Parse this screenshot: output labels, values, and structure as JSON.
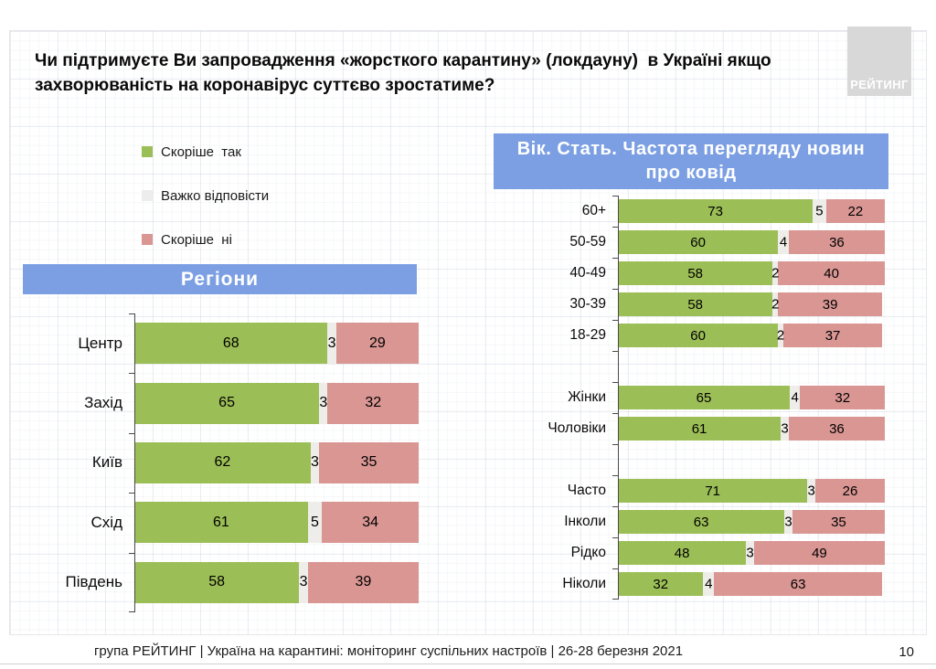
{
  "title": {
    "line1": "Чи підтримуєте Ви запровадження «жорсткого карантину» (локдауну)  в Україні якщо",
    "line2": "захворюваність на коронавірус суттєво зростатиме?"
  },
  "logo": {
    "text": "РЕЙТИНГ"
  },
  "colors": {
    "yes_green": "#9cbe56",
    "neutral_gray": "#eeede9",
    "legend_neutral_gray": "#ededed",
    "no_pink": "#d99693",
    "banner_blue": "#7c9fe3",
    "logo_gray": "#d8d8d8",
    "axis": "#4a4a4a"
  },
  "legend": {
    "items": [
      {
        "label": "Скоріше  так",
        "color": "#9cbe56"
      },
      {
        "label": "Важко відповісти",
        "color": "#ededed"
      },
      {
        "label": "Скоріше  ні",
        "color": "#d99693"
      }
    ]
  },
  "chart_data": [
    {
      "type": "bar",
      "stacked": true,
      "orientation": "horizontal",
      "title": "Регіони",
      "series_names": [
        "Скоріше так",
        "Важко відповісти",
        "Скоріше ні"
      ],
      "series_colors": [
        "#9cbe56",
        "#eeede9",
        "#d99693"
      ],
      "xlim": [
        0,
        100
      ],
      "value_labels": true,
      "groups": [
        {
          "categories": [
            "Центр",
            "Захід",
            "Київ",
            "Схід",
            "Південь"
          ],
          "values": [
            [
              68,
              3,
              29
            ],
            [
              65,
              3,
              32
            ],
            [
              62,
              3,
              35
            ],
            [
              61,
              5,
              34
            ],
            [
              58,
              3,
              39
            ]
          ]
        }
      ]
    },
    {
      "type": "bar",
      "stacked": true,
      "orientation": "horizontal",
      "title": "Вік. Стать. Частота перегляду новин про ковід",
      "series_names": [
        "Скоріше так",
        "Важко відповісти",
        "Скоріше ні"
      ],
      "series_colors": [
        "#9cbe56",
        "#eeede9",
        "#d99693"
      ],
      "xlim": [
        0,
        100
      ],
      "value_labels": true,
      "groups": [
        {
          "categories": [
            "60+",
            "50-59",
            "40-49",
            "30-39",
            "18-29"
          ],
          "values": [
            [
              73,
              5,
              22
            ],
            [
              60,
              4,
              36
            ],
            [
              58,
              2,
              40
            ],
            [
              58,
              2,
              39
            ],
            [
              60,
              2,
              37
            ]
          ]
        },
        {
          "categories": [
            "Жінки",
            "Чоловіки"
          ],
          "values": [
            [
              65,
              4,
              32
            ],
            [
              61,
              3,
              36
            ]
          ]
        },
        {
          "categories": [
            "Часто",
            "Інколи",
            "Рідко",
            "Ніколи"
          ],
          "values": [
            [
              71,
              3,
              26
            ],
            [
              63,
              3,
              35
            ],
            [
              48,
              3,
              49
            ],
            [
              32,
              4,
              63
            ]
          ]
        }
      ]
    }
  ],
  "footer": {
    "text": "група РЕЙТИНГ | Україна на карантині: моніторинг суспільних настроїв | 26-28 березня 2021",
    "page": "10"
  }
}
